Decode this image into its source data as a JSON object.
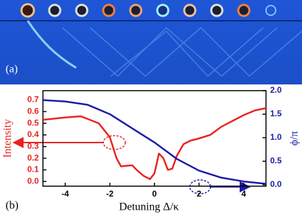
{
  "panel_labels": [
    "(a)",
    "(b)"
  ],
  "chart_data": {
    "type": "line",
    "x_label": "Detuning Δ/κ",
    "y_label": "Intensity",
    "y2_label": "ϕ/π",
    "xlim": [
      -5,
      5
    ],
    "xticks": [
      -4,
      -2,
      0,
      2,
      4
    ],
    "ylim": [
      -0.04,
      0.78
    ],
    "yticks": [
      {
        "value": 0,
        "label": "0.0"
      },
      0.1,
      0.2,
      0.3,
      0.4,
      0.5,
      0.6,
      0.7
    ],
    "y2lim": [
      -0.03,
      2.0
    ],
    "y2ticks": [
      {
        "value": 0,
        "label": "0.0"
      },
      0.5,
      {
        "value": 1,
        "label": "1.0"
      },
      1.5,
      {
        "value": 2,
        "label": "2.0"
      }
    ],
    "series": [
      {
        "name": "Intensity",
        "color": "#e8231f",
        "x": [
          -5,
          -4,
          -3.3,
          -2.5,
          -2,
          -1.7,
          -1.5,
          -1,
          -0.8,
          -0.5,
          -0.2,
          0,
          0.2,
          0.4,
          0.6,
          0.8,
          1,
          1.3,
          1.6,
          2,
          2.5,
          3,
          3.5,
          4,
          4.5,
          5
        ],
        "values": [
          0.53,
          0.55,
          0.56,
          0.5,
          0.38,
          0.2,
          0.13,
          0.14,
          0.1,
          0.05,
          0.02,
          0.07,
          0.24,
          0.2,
          0.1,
          0.11,
          0.22,
          0.32,
          0.35,
          0.37,
          0.4,
          0.47,
          0.52,
          0.57,
          0.61,
          0.63
        ]
      },
      {
        "name": "ϕ/π",
        "color": "#1a1aa8",
        "axis": "y2",
        "x": [
          -5,
          -4,
          -3,
          -2,
          -1,
          0,
          1,
          2,
          3,
          4,
          5
        ],
        "values": [
          1.8,
          1.77,
          1.7,
          1.5,
          1.2,
          0.9,
          0.55,
          0.3,
          0.15,
          0.07,
          0.02
        ]
      }
    ]
  }
}
